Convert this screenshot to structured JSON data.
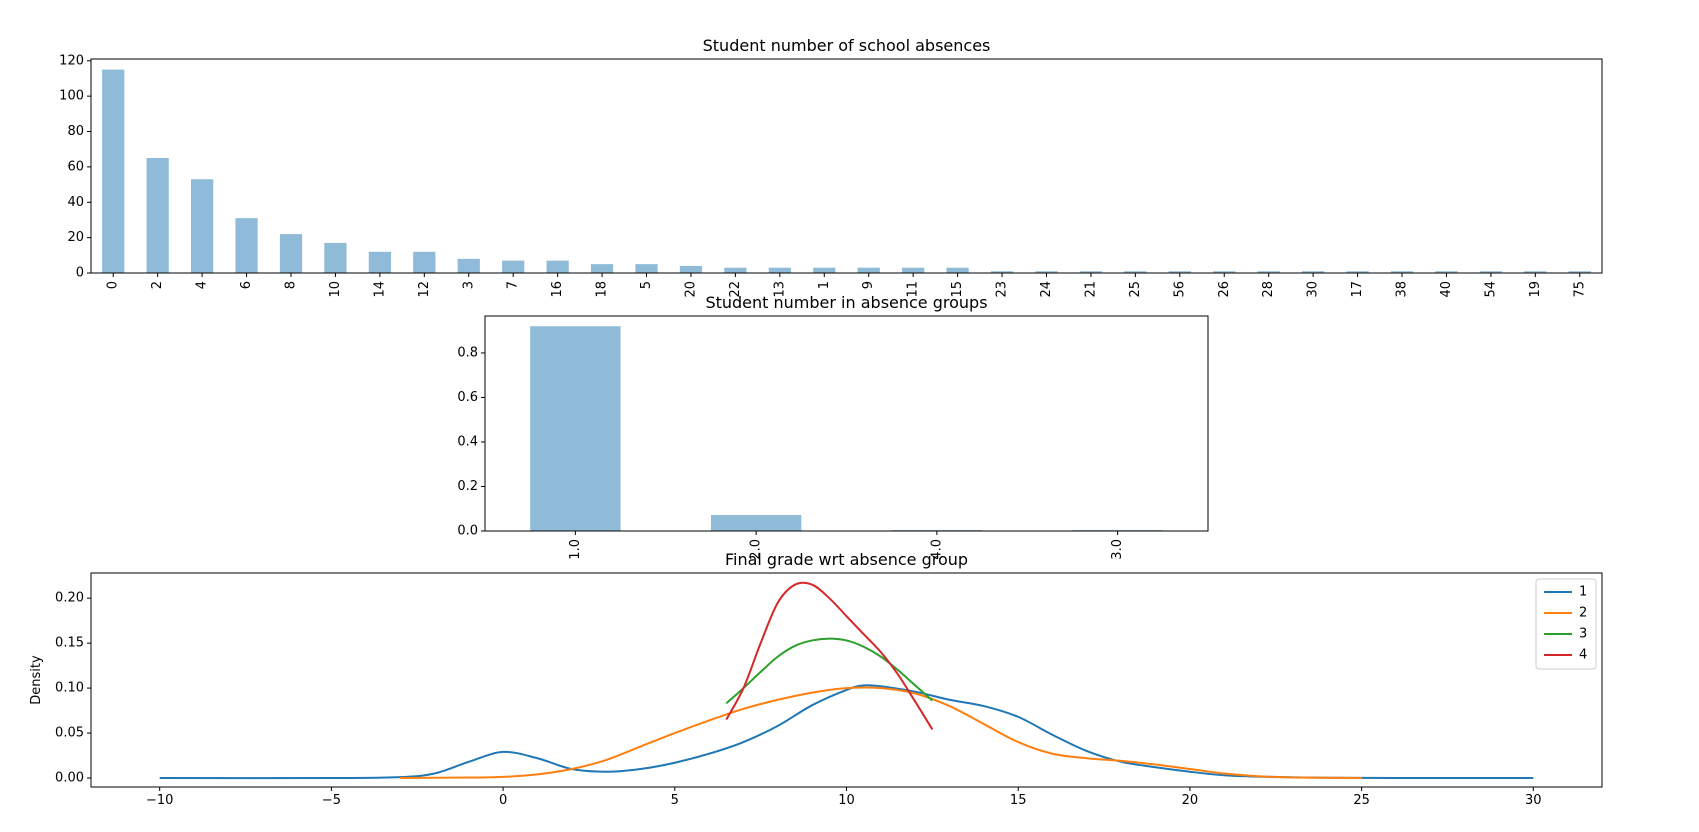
{
  "chart_data": [
    {
      "type": "bar",
      "title": "Student number of school absences",
      "xlabel": "",
      "ylabel": "",
      "categories": [
        "0",
        "2",
        "4",
        "6",
        "8",
        "10",
        "14",
        "12",
        "3",
        "7",
        "16",
        "18",
        "5",
        "20",
        "22",
        "13",
        "1",
        "9",
        "11",
        "15",
        "23",
        "24",
        "21",
        "25",
        "56",
        "26",
        "28",
        "30",
        "17",
        "38",
        "40",
        "54",
        "19",
        "75"
      ],
      "values": [
        115,
        65,
        53,
        31,
        22,
        17,
        12,
        12,
        8,
        7,
        7,
        5,
        5,
        4,
        3,
        3,
        3,
        3,
        3,
        3,
        1,
        1,
        1,
        1,
        1,
        1,
        1,
        1,
        1,
        1,
        1,
        1,
        1,
        1
      ],
      "ylim": [
        0,
        121
      ],
      "yticks": [
        0,
        20,
        40,
        60,
        80,
        100,
        120
      ],
      "bar_color": "#1f77b4",
      "bar_alpha": 0.5,
      "grid": false,
      "legend": false
    },
    {
      "type": "bar",
      "title": "Student number in absence groups",
      "xlabel": "",
      "ylabel": "",
      "categories": [
        "1.0",
        "2.0",
        "4.0",
        "3.0"
      ],
      "values": [
        0.92,
        0.072,
        0.004,
        0.004
      ],
      "ylim": [
        0,
        0.966
      ],
      "yticks": [
        0.0,
        0.2,
        0.4,
        0.6,
        0.8
      ],
      "ytick_labels": [
        "0.0",
        "0.2",
        "0.4",
        "0.6",
        "0.8"
      ],
      "bar_color": "#1f77b4",
      "bar_alpha": 0.5,
      "grid": false,
      "legend": false
    },
    {
      "type": "line",
      "title": "Final grade wrt absence group",
      "xlabel": "",
      "ylabel": "Density",
      "xlim": [
        -12,
        32
      ],
      "ylim": [
        -0.01,
        0.228
      ],
      "xticks": [
        -10,
        -5,
        0,
        5,
        10,
        15,
        20,
        25,
        30
      ],
      "xtick_labels": [
        "−10",
        "−5",
        "0",
        "5",
        "10",
        "15",
        "20",
        "25",
        "30"
      ],
      "yticks": [
        0.0,
        0.05,
        0.1,
        0.15,
        0.2
      ],
      "ytick_labels": [
        "0.00",
        "0.05",
        "0.10",
        "0.15",
        "0.20"
      ],
      "grid": false,
      "legend": "top-right",
      "series": [
        {
          "name": "1",
          "color": "#1f77b4",
          "x": [
            -10,
            -5,
            -3,
            -2,
            -1,
            0,
            1,
            2,
            3,
            4,
            5,
            6,
            7,
            8,
            9,
            10,
            10.5,
            11,
            12,
            13,
            14,
            15,
            16,
            17,
            18,
            19,
            20,
            21,
            22,
            24,
            26,
            28,
            30
          ],
          "y": [
            0,
            0,
            0.001,
            0.005,
            0.018,
            0.029,
            0.022,
            0.01,
            0.007,
            0.01,
            0.017,
            0.027,
            0.04,
            0.058,
            0.081,
            0.098,
            0.103,
            0.102,
            0.096,
            0.087,
            0.08,
            0.068,
            0.048,
            0.03,
            0.018,
            0.012,
            0.007,
            0.003,
            0.0015,
            0.0003,
            0,
            0,
            0
          ]
        },
        {
          "name": "2",
          "color": "#ff7f0e",
          "x": [
            -3,
            -1,
            0,
            1,
            2,
            3,
            4,
            5,
            6,
            7,
            8,
            9,
            10,
            11,
            12,
            13,
            14,
            15,
            16,
            17,
            18,
            19,
            20,
            21,
            22,
            23,
            25
          ],
          "y": [
            0,
            0.0005,
            0.0012,
            0.004,
            0.01,
            0.02,
            0.035,
            0.05,
            0.064,
            0.077,
            0.087,
            0.095,
            0.1,
            0.1,
            0.094,
            0.08,
            0.06,
            0.04,
            0.027,
            0.022,
            0.019,
            0.015,
            0.01,
            0.005,
            0.002,
            0.0006,
            0
          ]
        },
        {
          "name": "3",
          "color": "#2ca02c",
          "x": [
            6.5,
            7,
            7.5,
            8,
            8.5,
            9,
            9.5,
            10,
            10.5,
            11,
            11.5,
            12,
            12.5
          ],
          "y": [
            0.083,
            0.1,
            0.118,
            0.135,
            0.147,
            0.153,
            0.155,
            0.153,
            0.146,
            0.135,
            0.12,
            0.103,
            0.086
          ]
        },
        {
          "name": "4",
          "color": "#d62728",
          "x": [
            6.5,
            7,
            7.5,
            8,
            8.5,
            9,
            9.5,
            10,
            10.5,
            11,
            11.5,
            12,
            12.5
          ],
          "y": [
            0.065,
            0.1,
            0.15,
            0.195,
            0.215,
            0.215,
            0.2,
            0.18,
            0.16,
            0.14,
            0.115,
            0.085,
            0.054
          ]
        }
      ]
    }
  ]
}
